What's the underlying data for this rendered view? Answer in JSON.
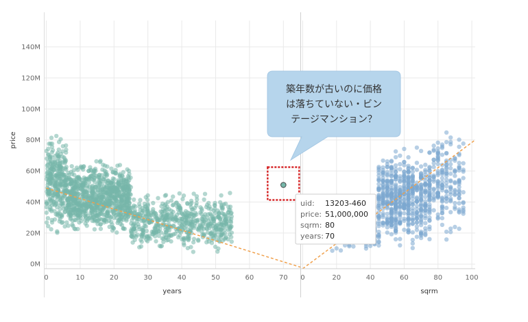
{
  "chart_data": {
    "type": "scatter",
    "ylabel": "price",
    "y_ticks": [
      "0M",
      "20M",
      "40M",
      "60M",
      "80M",
      "100M",
      "120M",
      "140M"
    ],
    "y_tick_values": [
      0,
      20,
      40,
      60,
      80,
      100,
      120,
      140
    ],
    "ylim": [
      -3,
      157
    ],
    "colors": {
      "years": "#76b7aa",
      "sqrm": "#7ba7cf",
      "trend": "#f0a04b",
      "highlight": "#d62728"
    },
    "panels": [
      {
        "id": "years",
        "xlabel": "years",
        "x_ticks": [
          "0",
          "10",
          "20",
          "30",
          "40",
          "50",
          "60",
          "70"
        ],
        "x_tick_values": [
          0,
          10,
          20,
          30,
          40,
          50,
          60,
          70
        ],
        "xlim": [
          -0.5,
          75
        ],
        "trend": {
          "x0": 0,
          "y0": 49,
          "x1": 75,
          "y1": -2
        },
        "clusters": [
          {
            "x_range": [
              0,
              6
            ],
            "y_range": [
              15,
              90
            ],
            "count": 300
          },
          {
            "x_range": [
              6,
              25
            ],
            "y_range": [
              15,
              70
            ],
            "count": 900
          },
          {
            "x_range": [
              25,
              55
            ],
            "y_range": [
              5,
              50
            ],
            "count": 600
          }
        ],
        "highlight": {
          "x": 70,
          "y": 51
        }
      },
      {
        "id": "sqrm",
        "xlabel": "sqrm",
        "x_ticks": [
          "0",
          "20",
          "40",
          "60",
          "80",
          "100"
        ],
        "x_tick_values": [
          0,
          20,
          40,
          60,
          80,
          100
        ],
        "xlim": [
          -1,
          102
        ],
        "trend": {
          "x0": 0,
          "y0": -3,
          "x1": 102,
          "y1": 80
        },
        "clusters": [
          {
            "x_range": [
              15,
              45
            ],
            "y_range": [
              5,
              40
            ],
            "count": 300
          },
          {
            "x_range": [
              45,
              75
            ],
            "y_range": [
              5,
              80
            ],
            "count": 600
          },
          {
            "x_range": [
              75,
              95
            ],
            "y_range": [
              10,
              95
            ],
            "count": 200
          }
        ]
      }
    ],
    "annotation": {
      "text_lines": [
        "築年数が古いのに価格",
        "は落ちていない・ビン",
        "テージマンション？"
      ]
    },
    "tooltip": {
      "rows": [
        {
          "key": "uid:",
          "value": "13203-460"
        },
        {
          "key": "price:",
          "value": "51,000,000"
        },
        {
          "key": "sqrm:",
          "value": "80"
        },
        {
          "key": "years:",
          "value": "70"
        }
      ]
    }
  }
}
